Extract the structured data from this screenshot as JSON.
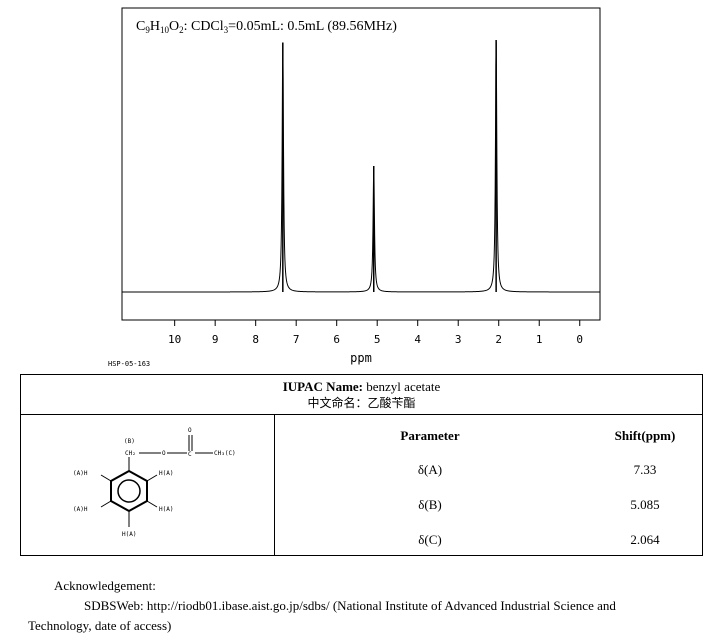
{
  "chart_data": {
    "type": "line",
    "title": "C9H10O2: CDCl3=0.05mL: 0.5mL (89.56MHz)",
    "title_parts": {
      "c": "C",
      "s9": "9",
      "h": "H",
      "s10": "10",
      "o": "O",
      "s2": "2",
      "rest1": ": CDCl",
      "s3": "3",
      "rest2": "=0.05mL: 0.5mL (89.56MHz)"
    },
    "xlabel": "ppm",
    "xlim": [
      11.3,
      -0.5
    ],
    "x_ticks": [
      "10",
      "9",
      "8",
      "7",
      "6",
      "5",
      "4",
      "3",
      "2",
      "1",
      "0"
    ],
    "reversed_x_axis": true,
    "baseline_level": 0,
    "peaks": [
      {
        "ppm": 7.33,
        "relative_height": 0.99,
        "label": "A"
      },
      {
        "ppm": 5.085,
        "relative_height": 0.5,
        "label": "B"
      },
      {
        "ppm": 2.064,
        "relative_height": 1.0,
        "label": "C"
      }
    ],
    "grid": false,
    "legend": "none",
    "line_color": "#000000"
  },
  "spectrum_id": "HSP-05-163",
  "info": {
    "iupac_label": "IUPAC Name:",
    "iupac_value": " benzyl acetate",
    "chinese_name": "中文命名：乙酸苄酯",
    "header_parameter": "Parameter",
    "header_shift": "Shift(ppm)",
    "rows": [
      {
        "param": "δ(A)",
        "shift": "7.33"
      },
      {
        "param": "δ(B)",
        "shift": "5.085"
      },
      {
        "param": "δ(C)",
        "shift": "2.064"
      }
    ]
  },
  "structure_labels": {
    "b_tag": "(B)",
    "ch2": "CH₂",
    "o": "O",
    "c": "C",
    "o_double": "O",
    "ch3": "CH₃(C)",
    "h_a_left_top": "(A)H",
    "h_a_right_top": "H(A)",
    "h_a_left_bottom": "(A)H",
    "h_a_right_bottom": "H(A)",
    "h_a_bottom": "H(A)"
  },
  "acknowledgement": {
    "line1": "Acknowledgement:",
    "line2": "SDBSWeb: http://riodb01.ibase.aist.go.jp/sdbs/ (National Institute of Advanced Industrial Science and",
    "line3": "Technology, date of access)"
  }
}
